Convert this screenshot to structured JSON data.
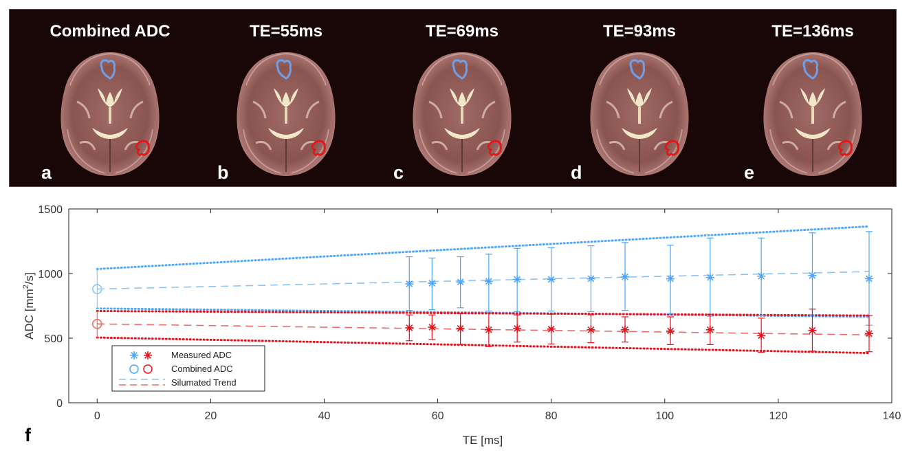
{
  "mri_panels": [
    {
      "title": "Combined ADC",
      "letter": "a"
    },
    {
      "title": "TE=55ms",
      "letter": "b"
    },
    {
      "title": "TE=69ms",
      "letter": "c"
    },
    {
      "title": "TE=93ms",
      "letter": "d"
    },
    {
      "title": "TE=136ms",
      "letter": "e"
    }
  ],
  "figure_letter": "f",
  "colors": {
    "blue": "#4da6ff",
    "blue_light": "#8cc4f5",
    "red": "#e8101a",
    "red_light": "#ee6a6a",
    "panel_bg": "#190606",
    "roi_blue": "#6f9fe8",
    "roi_red": "#e21818"
  },
  "chart_data": {
    "type": "scatter",
    "xlabel": "TE [ms]",
    "ylabel_main": "ADC [mm",
    "ylabel_sup": "2",
    "ylabel_end": "/s]",
    "xlim": [
      -5,
      140
    ],
    "ylim": [
      0,
      1500
    ],
    "xticks": [
      0,
      20,
      40,
      60,
      80,
      100,
      120,
      140
    ],
    "yticks": [
      0,
      500,
      1000,
      1500
    ],
    "x": [
      55,
      59,
      64,
      69,
      74,
      80,
      87,
      93,
      101,
      108,
      117,
      126,
      136
    ],
    "series": [
      {
        "name": "Measured ADC (blue ROI)",
        "color": "#4da6ff",
        "values": [
          920,
          925,
          935,
          940,
          955,
          955,
          960,
          975,
          960,
          970,
          980,
          985,
          960
        ],
        "err_low": [
          715,
          720,
          735,
          710,
          705,
          710,
          705,
          715,
          690,
          670,
          675,
          680,
          600
        ],
        "err_high": [
          1130,
          1120,
          1130,
          1150,
          1195,
          1200,
          1215,
          1240,
          1220,
          1275,
          1275,
          1315,
          1325
        ]
      },
      {
        "name": "Measured ADC (red ROI)",
        "color": "#e8101a",
        "values": [
          580,
          585,
          575,
          565,
          575,
          570,
          565,
          565,
          555,
          565,
          520,
          560,
          535
        ],
        "err_low": [
          480,
          490,
          450,
          435,
          470,
          455,
          465,
          470,
          450,
          450,
          390,
          400,
          395
        ],
        "err_high": [
          680,
          680,
          690,
          695,
          680,
          685,
          680,
          665,
          665,
          685,
          655,
          725,
          675
        ]
      }
    ],
    "combined": [
      {
        "name": "Combined ADC (blue)",
        "x": 0,
        "value": 880,
        "err_low": 725,
        "err_high": 1030
      },
      {
        "name": "Combined ADC (red)",
        "x": 0,
        "value": 610,
        "err_low": 505,
        "err_high": 710
      }
    ],
    "trend": [
      {
        "color": "blue",
        "style": "dashed",
        "from": [
          0,
          880
        ],
        "to": [
          136,
          1015
        ]
      },
      {
        "color": "red",
        "style": "dashed",
        "from": [
          0,
          610
        ],
        "to": [
          136,
          525
        ]
      }
    ],
    "bounds": [
      {
        "color": "blue",
        "style": "dotted",
        "from": [
          0,
          1035
        ],
        "to": [
          136,
          1365
        ]
      },
      {
        "color": "blue",
        "style": "dotted",
        "from": [
          0,
          730
        ],
        "to": [
          136,
          665
        ]
      },
      {
        "color": "red",
        "style": "dotted",
        "from": [
          0,
          710
        ],
        "to": [
          136,
          675
        ]
      },
      {
        "color": "red",
        "style": "dotted",
        "from": [
          0,
          505
        ],
        "to": [
          136,
          385
        ]
      }
    ],
    "legend": {
      "position": "bottom-left",
      "entries": [
        {
          "label": "Measured ADC",
          "marker": "star"
        },
        {
          "label": "Combined ADC",
          "marker": "circle"
        },
        {
          "label": "Silumated Trend",
          "marker": "dash"
        }
      ]
    }
  }
}
